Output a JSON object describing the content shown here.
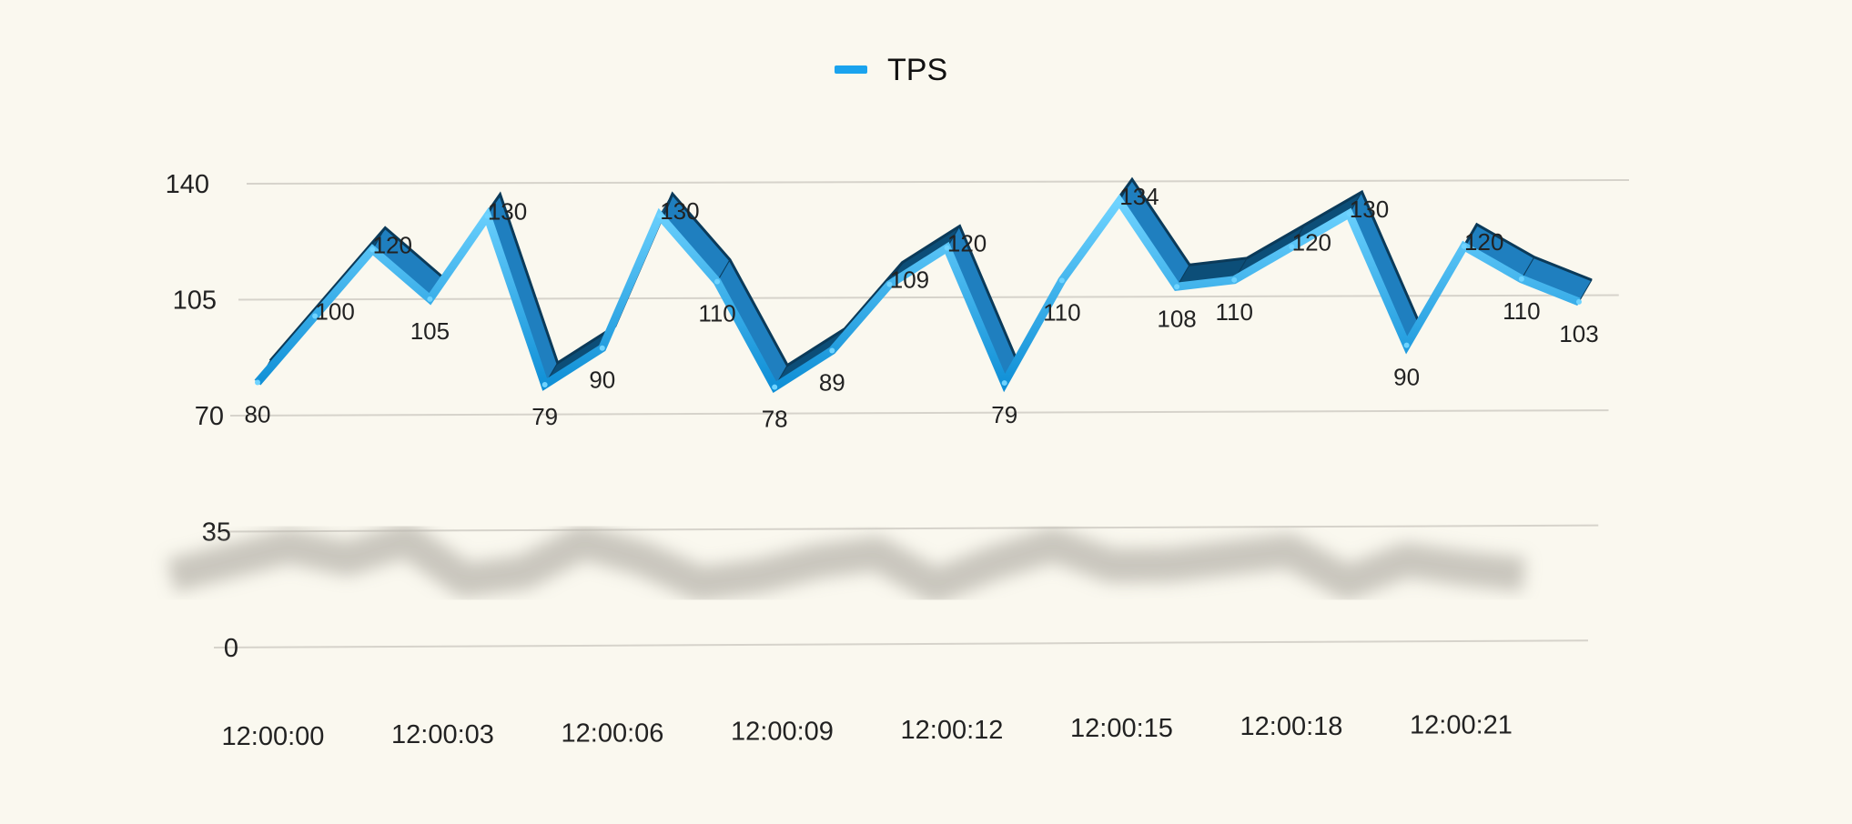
{
  "chart_data": {
    "type": "line",
    "title": "",
    "xlabel": "",
    "ylabel": "",
    "ylim": [
      0,
      140
    ],
    "yticks": [
      "0",
      "35",
      "70",
      "105",
      "140"
    ],
    "x": [
      "12:00:00",
      "12:00:01",
      "12:00:02",
      "12:00:03",
      "12:00:04",
      "12:00:05",
      "12:00:06",
      "12:00:07",
      "12:00:08",
      "12:00:09",
      "12:00:10",
      "12:00:11",
      "12:00:12",
      "12:00:13",
      "12:00:14",
      "12:00:15",
      "12:00:16",
      "12:00:17",
      "12:00:18",
      "12:00:19",
      "12:00:20",
      "12:00:21",
      "12:00:22",
      "12:00:23"
    ],
    "xtick_labels": [
      "12:00:00",
      "12:00:03",
      "12:00:06",
      "12:00:09",
      "12:00:12",
      "12:00:15",
      "12:00:18",
      "12:00:21"
    ],
    "series": [
      {
        "name": "TPS",
        "color": "#1aa3ee",
        "values": [
          80,
          100,
          120,
          105,
          130,
          79,
          90,
          130,
          110,
          78,
          89,
          109,
          120,
          79,
          110,
          134,
          108,
          110,
          120,
          130,
          90,
          120,
          110,
          103
        ]
      }
    ],
    "legend": {
      "position": "top-center",
      "label": "TPS"
    },
    "grid": true,
    "style": "3d ribbon with shadow"
  }
}
